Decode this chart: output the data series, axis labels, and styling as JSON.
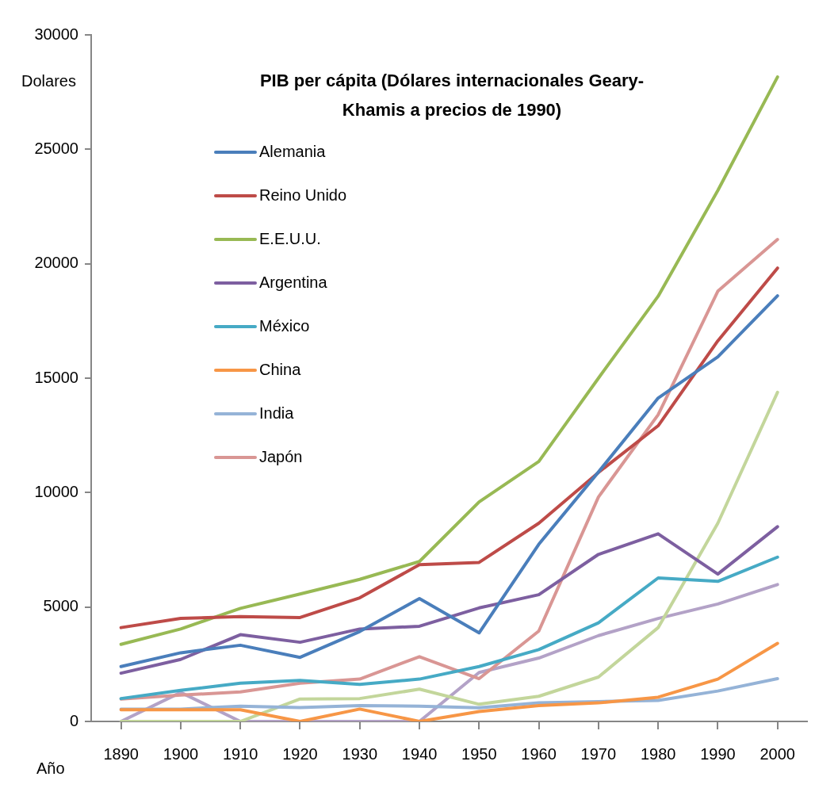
{
  "chart_data": {
    "type": "line",
    "title": "PIB per cápita (Dólares internacionales Geary-Khamis a precios de 1990)",
    "xlabel": "Año",
    "ylabel": "Dolares",
    "categories": [
      "1890",
      "1900",
      "1910",
      "1920",
      "1930",
      "1940",
      "1950",
      "1960",
      "1970",
      "1980",
      "1990",
      "2000"
    ],
    "ylim": [
      0,
      30000
    ],
    "yticks": [
      0,
      5000,
      10000,
      15000,
      20000,
      25000,
      30000
    ],
    "grid": false,
    "legend": "top left",
    "marker": "none",
    "line_style": "solid",
    "series": [
      {
        "name": "Alemania",
        "color": "#4a7ebb",
        "values": [
          2400,
          3000,
          3330,
          2800,
          3930,
          5370,
          3870,
          7740,
          10900,
          14130,
          15930,
          18600
        ]
      },
      {
        "name": "Reino Unido",
        "color": "#be4b48",
        "values": [
          4100,
          4500,
          4580,
          4540,
          5400,
          6850,
          6950,
          8660,
          10880,
          12920,
          16630,
          19810
        ]
      },
      {
        "name": "E.E.U.U.",
        "color": "#98b954",
        "values": [
          3370,
          4040,
          4940,
          5570,
          6210,
          6990,
          9590,
          11360,
          15000,
          18580,
          23200,
          28160
        ]
      },
      {
        "name": "Argentina",
        "color": "#7d5fa0",
        "values": [
          2110,
          2710,
          3790,
          3460,
          4040,
          4160,
          4960,
          5540,
          7300,
          8200,
          6440,
          8510
        ]
      },
      {
        "name": "México",
        "color": "#46aac5",
        "values": [
          1000,
          1360,
          1670,
          1790,
          1620,
          1850,
          2400,
          3140,
          4310,
          6270,
          6120,
          7180
        ]
      },
      {
        "name": "China",
        "color": "#f79646",
        "values": [
          510,
          510,
          510,
          0,
          540,
          0,
          430,
          690,
          810,
          1060,
          1850,
          3410
        ]
      },
      {
        "name": "India",
        "color": "#95b3d7",
        "values": [
          540,
          540,
          670,
          610,
          690,
          670,
          600,
          810,
          870,
          920,
          1330,
          1870
        ]
      },
      {
        "name": "Japón",
        "color": "#d99694",
        "values": [
          980,
          1150,
          1290,
          1670,
          1850,
          2830,
          1870,
          3950,
          9810,
          13400,
          18800,
          21060
        ]
      },
      {
        "color": "#c3d69b",
        "values": [
          0,
          0,
          0,
          980,
          1000,
          1410,
          750,
          1100,
          1940,
          4100,
          8660,
          14380
        ]
      },
      {
        "color": "#b3a2c7",
        "values": [
          0,
          1270,
          0,
          0,
          0,
          0,
          2140,
          2770,
          3750,
          4500,
          5130,
          5980
        ]
      }
    ]
  }
}
